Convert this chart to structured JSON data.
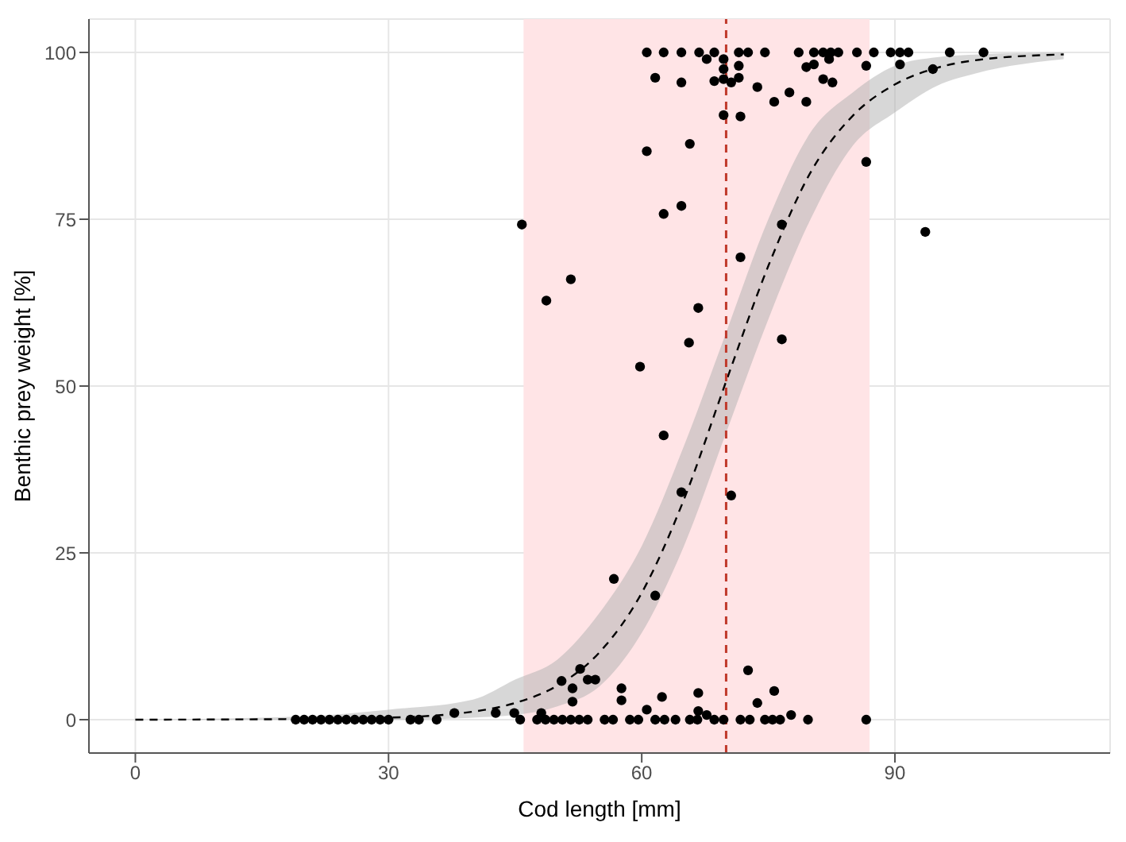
{
  "chart_data": {
    "type": "scatter",
    "xlabel": "Cod length [mm]",
    "ylabel": "Benthic prey weight [%]",
    "xlim": [
      -5.5,
      115.5
    ],
    "xticks": [
      0,
      30,
      60,
      90
    ],
    "ylim": [
      -5,
      105
    ],
    "yticks": [
      0,
      25,
      50,
      75,
      100
    ],
    "grid": true,
    "marker": "circle",
    "bands": [
      {
        "axis": "x",
        "from": 46,
        "to": 87,
        "color": "#ffe4e6"
      }
    ],
    "ref_lines": [
      {
        "axis": "x",
        "value": 70,
        "color": "#c0392b",
        "line_style": "dashed"
      }
    ],
    "series": [
      {
        "color": "#000000",
        "x": [
          19,
          20,
          21,
          22,
          23,
          24,
          25,
          26,
          27,
          28,
          29,
          30,
          32.6,
          33.6,
          35.7,
          37.8,
          42.7,
          44.9,
          45.6,
          47.6,
          48.1,
          48.6,
          49.6,
          50.5,
          50.6,
          51.6,
          51.8,
          51.8,
          52.6,
          52.7,
          53.6,
          53.6,
          54.5,
          55.6,
          56.6,
          57.6,
          57.6,
          58.6,
          59.6,
          60.6,
          61.6,
          62.4,
          62.7,
          64,
          65.7,
          66.6,
          66.7,
          66.7,
          67.7,
          68.6,
          69.7,
          71.7,
          72.6,
          72.8,
          73.7,
          74.6,
          75.5,
          75.7,
          76.4,
          77.7,
          79.7,
          86.6,
          45.8,
          48.7,
          51.6,
          56.7,
          59.8,
          60.6,
          61.6,
          62.6,
          62.6,
          64.7,
          64.7,
          65.6,
          65.7,
          66.7,
          69.7,
          70.6,
          71.7,
          71.7,
          75.7,
          76.6,
          76.6,
          77.5,
          79.5,
          86.6,
          93.6,
          94.5,
          60.6,
          62.6,
          64.7,
          66.8,
          68.6,
          71.5,
          72.6,
          74.6,
          78.6,
          80.4,
          81.5,
          82.4,
          83.3,
          85.5,
          87.5,
          89.5,
          90.6,
          91.6,
          96.5,
          100.5,
          67.7,
          69.7,
          82.2,
          69.7,
          71.5,
          79.5,
          80.4,
          86.6,
          90.6,
          61.6,
          64.7,
          68.6,
          69.7,
          70.6,
          71.5,
          73.7,
          81.5,
          82.6
        ],
        "values": [
          0,
          0,
          0,
          0,
          0,
          0,
          0,
          0,
          0,
          0,
          0,
          0,
          0,
          0,
          0,
          1,
          1,
          1,
          0,
          0,
          1,
          0,
          0,
          5.8,
          0,
          0,
          4.7,
          2.7,
          0,
          7.6,
          6,
          0,
          6,
          0,
          0,
          4.7,
          2.9,
          0,
          0,
          1.5,
          0,
          3.4,
          0,
          0,
          0,
          0,
          1.3,
          4,
          0.7,
          0,
          0,
          0,
          7.4,
          0,
          2.5,
          0,
          0,
          4.3,
          0,
          0.7,
          0,
          0,
          74.2,
          62.8,
          66,
          21.1,
          52.9,
          85.2,
          18.6,
          42.6,
          75.8,
          77,
          34.1,
          56.5,
          86.3,
          61.7,
          90.6,
          33.6,
          69.3,
          90.4,
          92.6,
          74.2,
          57,
          94,
          92.6,
          83.6,
          73.1,
          97.5,
          100,
          100,
          100,
          100,
          100,
          100,
          100,
          100,
          100,
          100,
          100,
          100,
          100,
          100,
          100,
          100,
          100,
          100,
          100,
          100,
          99,
          99,
          99,
          97.5,
          98,
          97.8,
          98.2,
          98,
          98.2,
          96.2,
          95.5,
          95.7,
          96,
          95.5,
          96.2,
          94.8,
          96,
          95.5
        ]
      },
      {
        "type": "line",
        "color": "#000000",
        "line_style": "dashed",
        "marker": "none",
        "x": [
          0,
          20,
          30,
          40,
          45,
          50,
          55,
          60,
          65,
          70,
          75,
          80,
          85,
          90,
          95,
          100,
          110
        ],
        "values": [
          0,
          0.1,
          0.3,
          1.2,
          2.5,
          5.1,
          10.1,
          19,
          33,
          50.7,
          68,
          82,
          90.5,
          95.2,
          97.7,
          98.9,
          99.7
        ],
        "lower": [
          0,
          0,
          0,
          0.3,
          0.7,
          2,
          5,
          13,
          26,
          43,
          60,
          75,
          86,
          91,
          95,
          97,
          99
        ],
        "upper": [
          0,
          0.5,
          1.5,
          3,
          6,
          9,
          16,
          26,
          41,
          58,
          75,
          88,
          94,
          98,
          99.3,
          99.7,
          100
        ]
      }
    ]
  }
}
